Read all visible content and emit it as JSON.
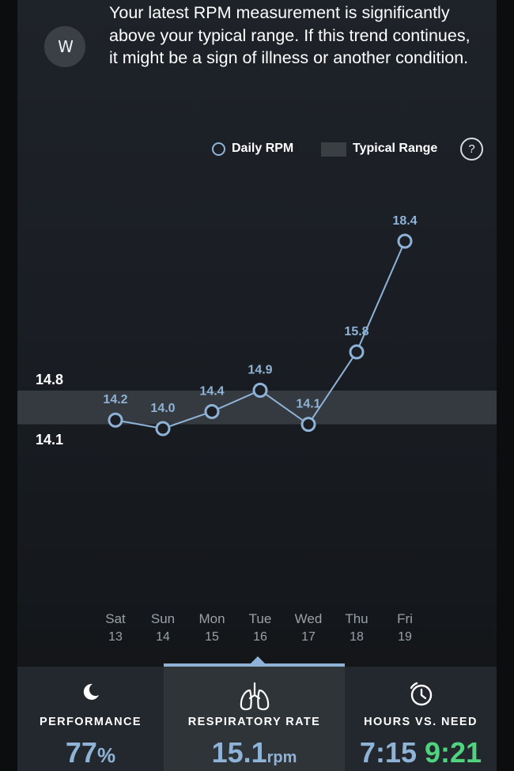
{
  "banner": {
    "logo_text": "W",
    "message": "Your latest RPM measurement is significantly above your typical range. If this trend continues, it might be a sign of illness or another condition."
  },
  "legend": {
    "daily_label": "Daily RPM",
    "range_label": "Typical Range",
    "help_label": "?"
  },
  "colors": {
    "accent": "#8fb3d6",
    "range_band": "#3a3f44",
    "green": "#4fd37e"
  },
  "chart_data": {
    "type": "line",
    "typical_range": [
      14.1,
      14.8
    ],
    "ytick_labels": [
      "14.8",
      "14.1"
    ],
    "categories": [
      {
        "day": "Sat",
        "date": "13"
      },
      {
        "day": "Sun",
        "date": "14"
      },
      {
        "day": "Mon",
        "date": "15"
      },
      {
        "day": "Tue",
        "date": "16"
      },
      {
        "day": "Wed",
        "date": "17"
      },
      {
        "day": "Thu",
        "date": "18"
      },
      {
        "day": "Fri",
        "date": "19"
      }
    ],
    "series": [
      {
        "values": [
          14.2,
          14.0,
          14.4,
          14.9,
          14.1,
          15.8,
          18.4
        ]
      }
    ],
    "data_labels": [
      "14.2",
      "14.0",
      "14.4",
      "14.9",
      "14.1",
      "15.8",
      "18.4"
    ]
  },
  "bottom": {
    "performance": {
      "icon": "moon-icon",
      "label": "PERFORMANCE",
      "value": "77",
      "unit": "%"
    },
    "respiratory": {
      "icon": "lungs-icon",
      "label": "RESPIRATORY RATE",
      "value": "15.1",
      "unit": "rpm"
    },
    "hours": {
      "icon": "clock-icon",
      "label": "HOURS VS. NEED",
      "value": "7:15",
      "need": "9:21"
    }
  }
}
